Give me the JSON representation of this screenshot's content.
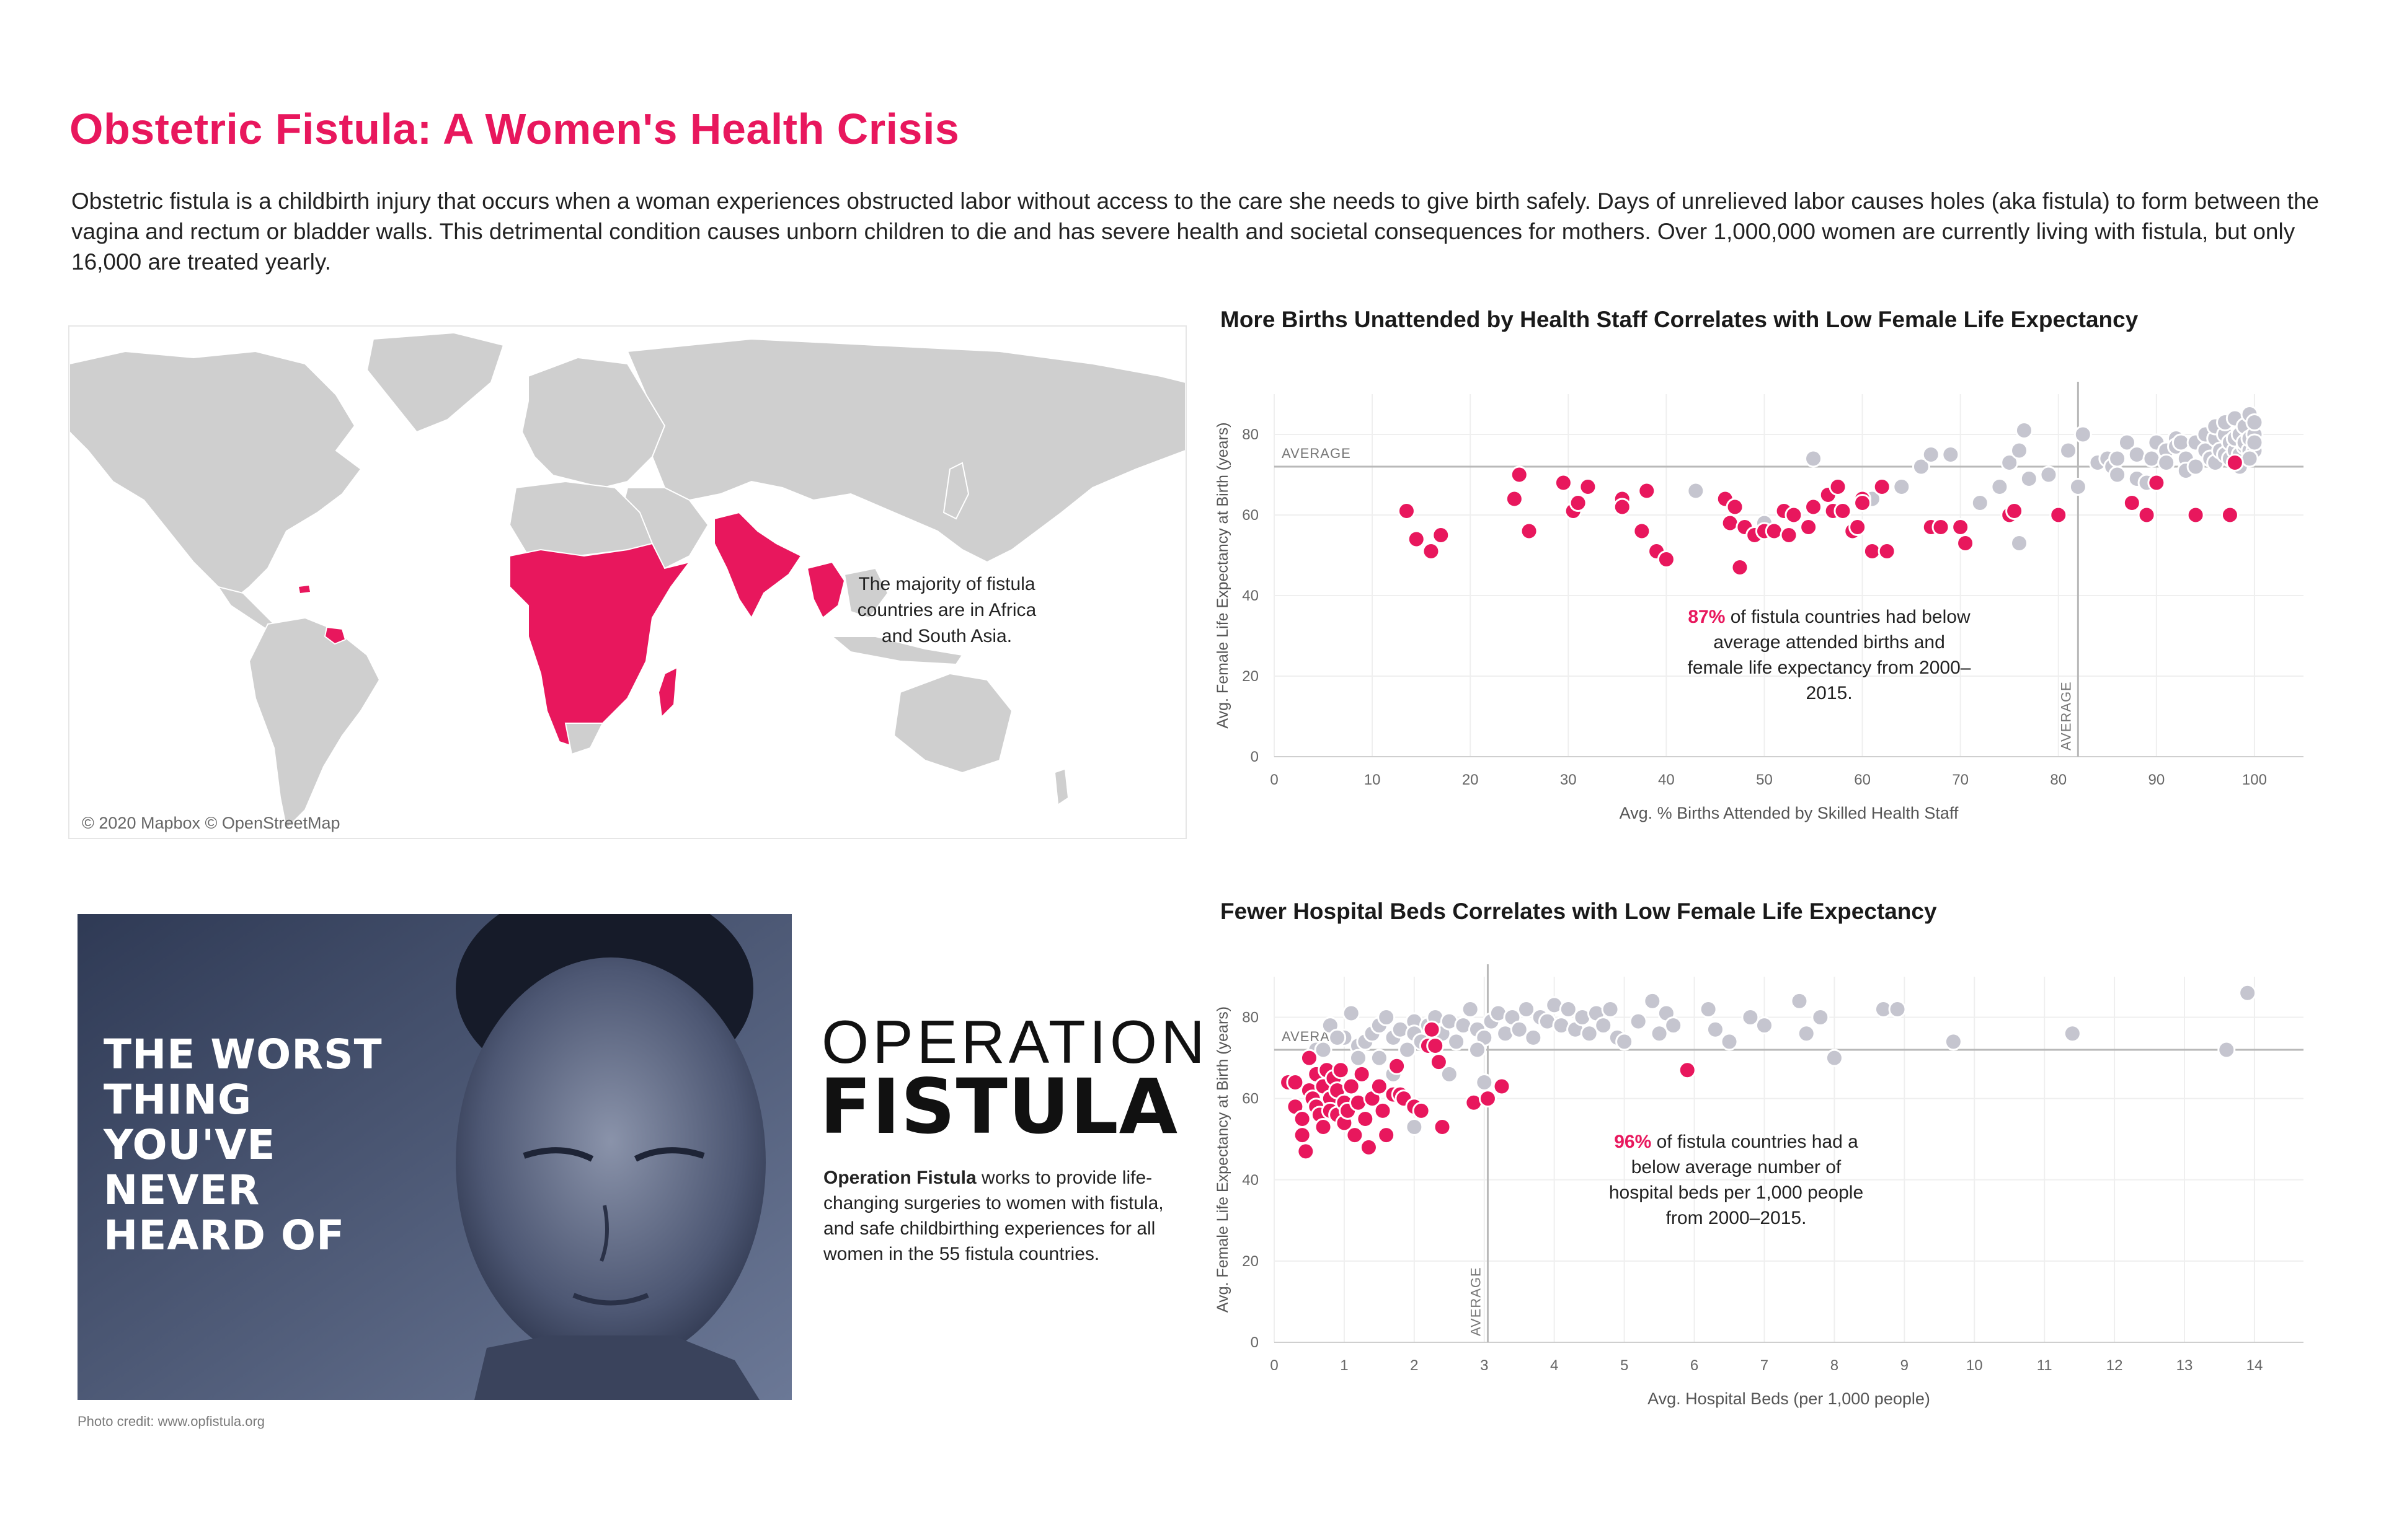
{
  "header": {
    "title": "Obstetric Fistula: A Women's Health Crisis",
    "intro": "Obstetric fistula is a childbirth injury that occurs when a woman experiences obstructed labor without access to the care she needs to give birth safely. Days of unrelieved  labor causes holes (aka fistula) to form between the vagina and rectum or bladder walls. This detrimental condition causes unborn children to die and has severe health and societal consequences for mothers. Over 1,000,000 women are currently living with fistula, but only 16,000 are treated yearly."
  },
  "map": {
    "note": "The majority of fistula countries are in Africa and South Asia.",
    "credit": "© 2020 Mapbox © OpenStreetMap",
    "land_color": "#cfcfcf",
    "highlight_color": "#e8175d"
  },
  "colors": {
    "fistula": "#e8175d",
    "other": "#c5c5cf",
    "title": "#e8175d"
  },
  "photo": {
    "headline_lines": [
      "THE WORST",
      "THING",
      "YOU'VE",
      "NEVER",
      "HEARD OF"
    ],
    "credit": "Photo credit: www.opfistula.org"
  },
  "operation": {
    "logo_top": "OPERATION",
    "logo_bottom": "FISTULA",
    "bold": "Operation Fistula",
    "text": " works to provide life-changing surgeries to women with fistula, and safe childbirthing experiences for all women in the 55 fistula countries."
  },
  "chart_data": [
    {
      "type": "scatter",
      "title": "More Births Unattended by Health Staff Correlates with Low Female Life Expectancy",
      "xlabel": "Avg. % Births Attended by Skilled Health Staff",
      "ylabel": "Avg. Female Life Expectancy at Birth (years)",
      "xlim": [
        0,
        105
      ],
      "ylim": [
        0,
        90
      ],
      "x_ticks": [
        "0",
        "10",
        "20",
        "30",
        "40",
        "50",
        "60",
        "70",
        "80",
        "90",
        "100"
      ],
      "y_ticks": [
        "0",
        "20",
        "40",
        "60",
        "80"
      ],
      "ref_lines": {
        "x": 82,
        "y": 72,
        "x_label": "AVERAGE",
        "y_label": "AVERAGE"
      },
      "annotation": {
        "pct": "87%",
        "text": " of fistula countries had below average attended births and female life expectancy from 2000–2015."
      },
      "series": [
        {
          "name": "Fistula countries",
          "color": "#e8175d",
          "points": [
            [
              13.5,
              61
            ],
            [
              14.5,
              54
            ],
            [
              16,
              51
            ],
            [
              17,
              55
            ],
            [
              24.5,
              64
            ],
            [
              25,
              70
            ],
            [
              26,
              56
            ],
            [
              29.5,
              68
            ],
            [
              30.5,
              61
            ],
            [
              31,
              63
            ],
            [
              32,
              67
            ],
            [
              35.5,
              64
            ],
            [
              35.5,
              62
            ],
            [
              37.5,
              56
            ],
            [
              38,
              66
            ],
            [
              39,
              51
            ],
            [
              40,
              49
            ],
            [
              46,
              64
            ],
            [
              46.5,
              58
            ],
            [
              47,
              62
            ],
            [
              47.5,
              47
            ],
            [
              48,
              57
            ],
            [
              49,
              55
            ],
            [
              50,
              56
            ],
            [
              51,
              56
            ],
            [
              52,
              61
            ],
            [
              52.5,
              55
            ],
            [
              53,
              60
            ],
            [
              54.5,
              57
            ],
            [
              55,
              62
            ],
            [
              56.5,
              65
            ],
            [
              57,
              61
            ],
            [
              57.5,
              67
            ],
            [
              58,
              61
            ],
            [
              59,
              56
            ],
            [
              59.5,
              57
            ],
            [
              60,
              64
            ],
            [
              60,
              63
            ],
            [
              61,
              51
            ],
            [
              62,
              67
            ],
            [
              62.5,
              51
            ],
            [
              67,
              57
            ],
            [
              68,
              57
            ],
            [
              70,
              57
            ],
            [
              70.5,
              53
            ],
            [
              75,
              60
            ],
            [
              75.5,
              61
            ],
            [
              80,
              60
            ],
            [
              87.5,
              63
            ],
            [
              89,
              60
            ],
            [
              90,
              68
            ],
            [
              94,
              60
            ],
            [
              97.5,
              60
            ],
            [
              98,
              73
            ]
          ]
        },
        {
          "name": "Other countries",
          "color": "#c5c5cf",
          "points": [
            [
              43,
              66
            ],
            [
              50,
              58
            ],
            [
              55,
              74
            ],
            [
              61,
              64
            ],
            [
              64,
              67
            ],
            [
              66,
              72
            ],
            [
              67,
              75
            ],
            [
              69,
              75
            ],
            [
              72,
              63
            ],
            [
              74,
              67
            ],
            [
              75,
              73
            ],
            [
              76,
              76
            ],
            [
              76,
              53
            ],
            [
              76.5,
              81
            ],
            [
              77,
              69
            ],
            [
              79,
              70
            ],
            [
              81,
              76
            ],
            [
              82,
              67
            ],
            [
              82.5,
              80
            ],
            [
              84,
              73
            ],
            [
              85,
              74
            ],
            [
              85.5,
              72
            ],
            [
              86,
              74
            ],
            [
              86,
              70
            ],
            [
              87,
              78
            ],
            [
              88,
              69
            ],
            [
              88,
              75
            ],
            [
              89,
              68
            ],
            [
              89.5,
              74
            ],
            [
              90,
              78
            ],
            [
              91,
              76
            ],
            [
              91,
              73
            ],
            [
              92,
              79
            ],
            [
              92,
              77
            ],
            [
              92.5,
              78
            ],
            [
              93,
              74
            ],
            [
              93,
              71
            ],
            [
              94,
              72
            ],
            [
              94,
              78
            ],
            [
              95,
              80
            ],
            [
              95,
              76
            ],
            [
              95.5,
              74
            ],
            [
              96,
              73
            ],
            [
              96,
              79
            ],
            [
              96,
              82
            ],
            [
              96.5,
              76
            ],
            [
              97,
              75
            ],
            [
              97,
              80
            ],
            [
              97,
              83
            ],
            [
              97.5,
              78
            ],
            [
              97.5,
              74
            ],
            [
              98,
              76
            ],
            [
              98,
              79
            ],
            [
              98,
              84
            ],
            [
              98.5,
              75
            ],
            [
              98.5,
              80
            ],
            [
              99,
              77
            ],
            [
              99,
              82
            ],
            [
              99,
              78
            ],
            [
              99.5,
              76
            ],
            [
              99.5,
              85
            ],
            [
              99.5,
              79
            ],
            [
              100,
              80
            ],
            [
              100,
              76
            ],
            [
              100,
              83
            ],
            [
              100,
              78
            ],
            [
              98.5,
              72
            ],
            [
              99.5,
              74
            ]
          ]
        }
      ]
    },
    {
      "type": "scatter",
      "title": "Fewer Hospital Beds Correlates with Low Female Life Expectancy",
      "xlabel": "Avg. Hospital Beds (per 1,000 people)",
      "ylabel": "Avg. Female Life Expectancy at Birth (years)",
      "xlim": [
        0,
        14.7
      ],
      "ylim": [
        0,
        90
      ],
      "x_ticks": [
        "0",
        "1",
        "2",
        "3",
        "4",
        "5",
        "6",
        "7",
        "8",
        "9",
        "10",
        "11",
        "12",
        "13",
        "14"
      ],
      "y_ticks": [
        "0",
        "20",
        "40",
        "60",
        "80"
      ],
      "ref_lines": {
        "x": 3.05,
        "y": 72,
        "x_label": "AVERAGE",
        "y_label": "AVERAGE"
      },
      "annotation": {
        "pct": "96%",
        "text": " of fistula countries had a below average number of hospital beds per 1,000 people from 2000–2015."
      },
      "series": [
        {
          "name": "Fistula countries",
          "color": "#e8175d",
          "points": [
            [
              0.2,
              64
            ],
            [
              0.3,
              64
            ],
            [
              0.3,
              58
            ],
            [
              0.4,
              55
            ],
            [
              0.4,
              51
            ],
            [
              0.45,
              47
            ],
            [
              0.5,
              62
            ],
            [
              0.5,
              70
            ],
            [
              0.55,
              60
            ],
            [
              0.6,
              66
            ],
            [
              0.6,
              58
            ],
            [
              0.65,
              56
            ],
            [
              0.7,
              63
            ],
            [
              0.7,
              53
            ],
            [
              0.75,
              67
            ],
            [
              0.8,
              60
            ],
            [
              0.8,
              57
            ],
            [
              0.85,
              65
            ],
            [
              0.9,
              56
            ],
            [
              0.9,
              62
            ],
            [
              0.95,
              67
            ],
            [
              1.0,
              59
            ],
            [
              1.0,
              54
            ],
            [
              1.05,
              57
            ],
            [
              1.1,
              63
            ],
            [
              1.15,
              51
            ],
            [
              1.2,
              59
            ],
            [
              1.25,
              66
            ],
            [
              1.3,
              55
            ],
            [
              1.35,
              48
            ],
            [
              1.4,
              60
            ],
            [
              1.5,
              63
            ],
            [
              1.55,
              57
            ],
            [
              1.6,
              51
            ],
            [
              1.7,
              61
            ],
            [
              1.75,
              68
            ],
            [
              1.8,
              61
            ],
            [
              1.85,
              60
            ],
            [
              2.0,
              58
            ],
            [
              2.1,
              57
            ],
            [
              2.2,
              73
            ],
            [
              2.25,
              77
            ],
            [
              2.3,
              73
            ],
            [
              2.35,
              69
            ],
            [
              2.4,
              53
            ],
            [
              2.85,
              59
            ],
            [
              3.05,
              60
            ],
            [
              3.25,
              63
            ],
            [
              5.9,
              67
            ]
          ]
        },
        {
          "name": "Other countries",
          "color": "#c5c5cf",
          "points": [
            [
              0.6,
              72
            ],
            [
              0.8,
              78
            ],
            [
              1.0,
              75
            ],
            [
              1.1,
              81
            ],
            [
              1.2,
              73
            ],
            [
              1.3,
              74
            ],
            [
              1.4,
              76
            ],
            [
              1.5,
              70
            ],
            [
              1.5,
              78
            ],
            [
              1.6,
              80
            ],
            [
              1.7,
              75
            ],
            [
              1.8,
              77
            ],
            [
              1.9,
              72
            ],
            [
              2.0,
              79
            ],
            [
              2.0,
              76
            ],
            [
              2.1,
              74
            ],
            [
              2.2,
              78
            ],
            [
              2.3,
              80
            ],
            [
              2.4,
              76
            ],
            [
              2.5,
              79
            ],
            [
              2.6,
              74
            ],
            [
              2.7,
              78
            ],
            [
              2.8,
              82
            ],
            [
              2.9,
              77
            ],
            [
              3.0,
              75
            ],
            [
              3.1,
              79
            ],
            [
              3.2,
              81
            ],
            [
              3.3,
              76
            ],
            [
              3.4,
              80
            ],
            [
              3.5,
              77
            ],
            [
              3.6,
              82
            ],
            [
              3.7,
              75
            ],
            [
              3.8,
              80
            ],
            [
              3.9,
              79
            ],
            [
              4.0,
              83
            ],
            [
              4.1,
              78
            ],
            [
              4.2,
              82
            ],
            [
              4.3,
              77
            ],
            [
              4.4,
              80
            ],
            [
              4.5,
              76
            ],
            [
              4.6,
              81
            ],
            [
              4.7,
              78
            ],
            [
              4.8,
              82
            ],
            [
              4.9,
              75
            ],
            [
              5.0,
              74
            ],
            [
              5.2,
              79
            ],
            [
              5.4,
              84
            ],
            [
              5.5,
              76
            ],
            [
              5.6,
              81
            ],
            [
              5.7,
              78
            ],
            [
              6.2,
              82
            ],
            [
              6.3,
              77
            ],
            [
              6.5,
              74
            ],
            [
              6.8,
              80
            ],
            [
              7.0,
              78
            ],
            [
              7.5,
              84
            ],
            [
              7.6,
              76
            ],
            [
              7.8,
              80
            ],
            [
              8.0,
              70
            ],
            [
              8.7,
              82
            ],
            [
              8.9,
              82
            ],
            [
              9.7,
              74
            ],
            [
              11.4,
              76
            ],
            [
              13.6,
              72
            ],
            [
              13.9,
              86
            ],
            [
              2.0,
              53
            ],
            [
              3.0,
              64
            ],
            [
              1.7,
              66
            ],
            [
              0.9,
              75
            ],
            [
              2.5,
              66
            ],
            [
              1.2,
              70
            ],
            [
              0.7,
              72
            ],
            [
              2.9,
              72
            ]
          ]
        }
      ]
    }
  ]
}
